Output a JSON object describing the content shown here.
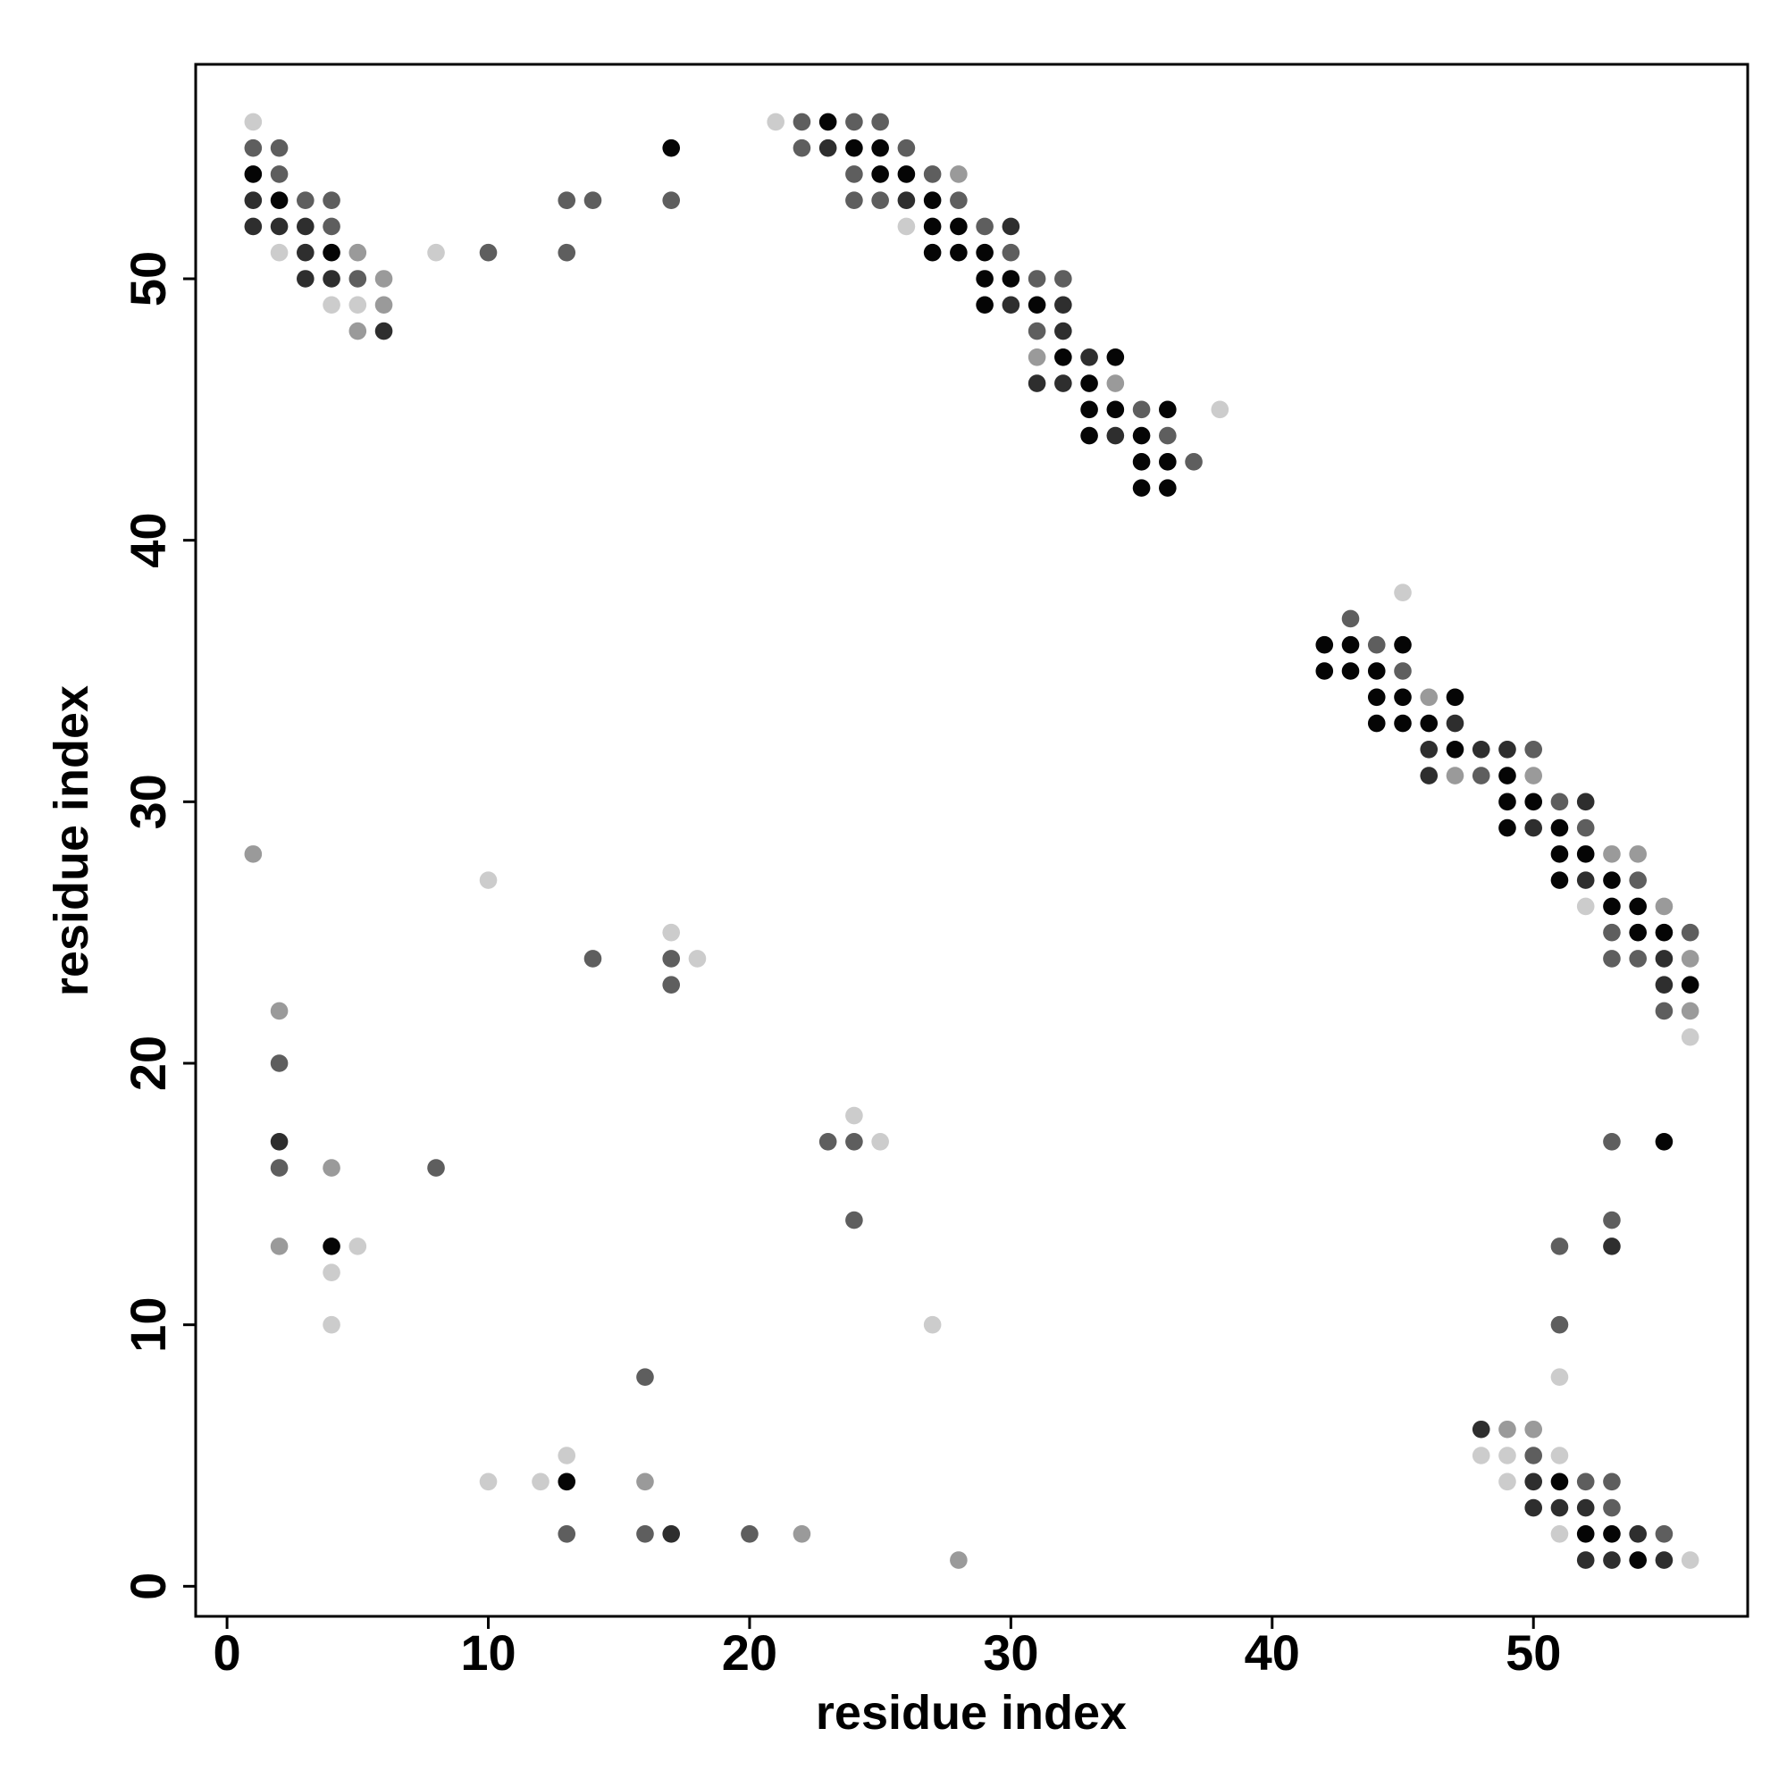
{
  "chart_data": {
    "type": "scatter",
    "xlabel": "residue index",
    "ylabel": "residue index",
    "xlim": [
      -1.2,
      58.2
    ],
    "ylim": [
      -1.15,
      58.2
    ],
    "xticks": [
      0,
      10,
      20,
      30,
      40,
      50
    ],
    "yticks": [
      0,
      10,
      20,
      30,
      40,
      50
    ],
    "series": [
      {
        "color": "#050505",
        "x": [
          1,
          2,
          4,
          17,
          23,
          24,
          25,
          25,
          26,
          27,
          27,
          28,
          27,
          28,
          29,
          29,
          30,
          29,
          31,
          32,
          34,
          33,
          33,
          34,
          36,
          33,
          35,
          35,
          36,
          35,
          36,
          42,
          43,
          45,
          42,
          43,
          44,
          44,
          45,
          47,
          44,
          45,
          46,
          47,
          49,
          49,
          50,
          49,
          51,
          51,
          52,
          51,
          53,
          53,
          54,
          54,
          55,
          56,
          4,
          13,
          55,
          51,
          52,
          53,
          54
        ],
        "y": [
          54,
          53,
          51,
          55,
          56,
          55,
          55,
          54,
          54,
          53,
          52,
          52,
          51,
          51,
          51,
          50,
          50,
          49,
          49,
          47,
          47,
          46,
          45,
          45,
          45,
          44,
          44,
          43,
          43,
          42,
          42,
          36,
          36,
          36,
          35,
          35,
          35,
          34,
          34,
          34,
          33,
          33,
          33,
          32,
          31,
          30,
          30,
          29,
          29,
          28,
          28,
          27,
          27,
          26,
          26,
          25,
          25,
          23,
          13,
          4,
          17,
          4,
          2,
          2,
          1
        ]
      },
      {
        "color": "#2e2e2e",
        "x": [
          1,
          1,
          2,
          3,
          3,
          3,
          4,
          6,
          23,
          26,
          30,
          30,
          32,
          32,
          33,
          31,
          32,
          34,
          47,
          46,
          48,
          49,
          46,
          52,
          50,
          52,
          55,
          55,
          2,
          17,
          53,
          48,
          50,
          50,
          51,
          52,
          54,
          52,
          53,
          55
        ],
        "y": [
          53,
          52,
          52,
          52,
          51,
          50,
          50,
          48,
          55,
          53,
          52,
          49,
          49,
          48,
          47,
          46,
          46,
          44,
          33,
          32,
          32,
          32,
          31,
          30,
          29,
          27,
          24,
          23,
          17,
          2,
          13,
          6,
          4,
          3,
          3,
          3,
          2,
          1,
          1,
          1
        ]
      },
      {
        "color": "#5e5e5e",
        "x": [
          1,
          2,
          2,
          3,
          4,
          4,
          5,
          10,
          13,
          14,
          13,
          17,
          22,
          24,
          25,
          22,
          26,
          24,
          27,
          24,
          25,
          28,
          29,
          30,
          31,
          32,
          31,
          35,
          36,
          37,
          43,
          44,
          45,
          48,
          50,
          51,
          52,
          54,
          53,
          56,
          53,
          54,
          55,
          14,
          17,
          17,
          2,
          2,
          8,
          23,
          24,
          24,
          16,
          13,
          16,
          20,
          53,
          51,
          53,
          51,
          50,
          52,
          53,
          53,
          55
        ],
        "y": [
          55,
          55,
          54,
          53,
          53,
          52,
          50,
          51,
          53,
          53,
          51,
          53,
          56,
          56,
          56,
          55,
          55,
          54,
          54,
          53,
          53,
          53,
          52,
          51,
          50,
          50,
          48,
          45,
          44,
          43,
          37,
          36,
          35,
          31,
          32,
          30,
          29,
          27,
          25,
          25,
          24,
          24,
          22,
          24,
          24,
          23,
          20,
          16,
          16,
          17,
          17,
          14,
          8,
          2,
          2,
          2,
          17,
          13,
          14,
          10,
          5,
          4,
          4,
          3,
          2
        ]
      },
      {
        "color": "#9a9a9a",
        "x": [
          5,
          6,
          6,
          5,
          28,
          31,
          34,
          46,
          47,
          50,
          53,
          54,
          55,
          56,
          56,
          1,
          2,
          4,
          2,
          16,
          22,
          28,
          49,
          50
        ],
        "y": [
          51,
          50,
          49,
          48,
          54,
          47,
          46,
          34,
          31,
          31,
          28,
          28,
          26,
          24,
          22,
          28,
          22,
          16,
          13,
          4,
          2,
          1,
          6,
          6
        ]
      },
      {
        "color": "#cccccc",
        "x": [
          1,
          2,
          4,
          5,
          8,
          21,
          26,
          38,
          45,
          52,
          56,
          10,
          17,
          18,
          5,
          4,
          4,
          24,
          25,
          27,
          10,
          12,
          13,
          51,
          48,
          49,
          51,
          49,
          51,
          56
        ],
        "y": [
          56,
          51,
          49,
          49,
          51,
          56,
          52,
          45,
          38,
          26,
          21,
          27,
          25,
          24,
          13,
          12,
          10,
          18,
          17,
          10,
          4,
          4,
          5,
          8,
          5,
          5,
          5,
          4,
          2,
          1
        ]
      }
    ]
  }
}
